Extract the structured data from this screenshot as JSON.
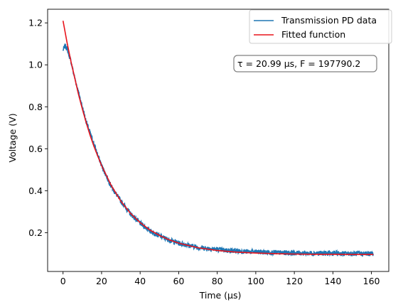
{
  "chart_data": {
    "type": "line",
    "xlabel": "Time (µs)",
    "ylabel": "Voltage (V)",
    "xlim": [
      -8,
      169
    ],
    "ylim": [
      0.015,
      1.265
    ],
    "xticks": [
      0,
      20,
      40,
      60,
      80,
      100,
      120,
      140,
      160
    ],
    "yticks": [
      0.2,
      0.4,
      0.6,
      0.8,
      1.0,
      1.2
    ],
    "xtick_labels": [
      "0",
      "20",
      "40",
      "60",
      "80",
      "100",
      "120",
      "140",
      "160"
    ],
    "ytick_labels": [
      "0.2",
      "0.4",
      "0.6",
      "0.8",
      "1.0",
      "1.2"
    ],
    "grid": false,
    "legend_position": "top-right",
    "annotation": "τ = 20.99 µs, F = 197790.2",
    "series": [
      {
        "name": "Transmission PD data",
        "color": "#1f77b4",
        "x": [
          0,
          1,
          2,
          3,
          4,
          5,
          6,
          8,
          10,
          12,
          15,
          18,
          20,
          25,
          30,
          35,
          40,
          45,
          50,
          55,
          60,
          70,
          80,
          90,
          100,
          110,
          120,
          130,
          140,
          150,
          161
        ],
        "y": [
          1.07,
          1.09,
          1.08,
          1.05,
          1.02,
          0.98,
          0.94,
          0.87,
          0.8,
          0.73,
          0.65,
          0.57,
          0.52,
          0.42,
          0.35,
          0.29,
          0.245,
          0.21,
          0.185,
          0.165,
          0.15,
          0.13,
          0.12,
          0.112,
          0.108,
          0.105,
          0.103,
          0.102,
          0.101,
          0.1,
          0.1
        ],
        "noise_amplitude": 0.012
      },
      {
        "name": "Fitted function",
        "color": "#e8131b",
        "x": [
          0,
          2,
          4,
          6,
          8,
          10,
          12,
          14,
          16,
          18,
          20,
          25,
          30,
          35,
          40,
          45,
          50,
          55,
          60,
          70,
          80,
          90,
          100,
          110,
          120,
          130,
          140,
          150,
          161
        ],
        "y": [
          1.21,
          1.11,
          1.02,
          0.94,
          0.86,
          0.79,
          0.725,
          0.665,
          0.612,
          0.565,
          0.52,
          0.425,
          0.35,
          0.292,
          0.248,
          0.213,
          0.187,
          0.166,
          0.15,
          0.128,
          0.115,
          0.107,
          0.103,
          0.1,
          0.098,
          0.097,
          0.097,
          0.096,
          0.096
        ]
      }
    ]
  }
}
